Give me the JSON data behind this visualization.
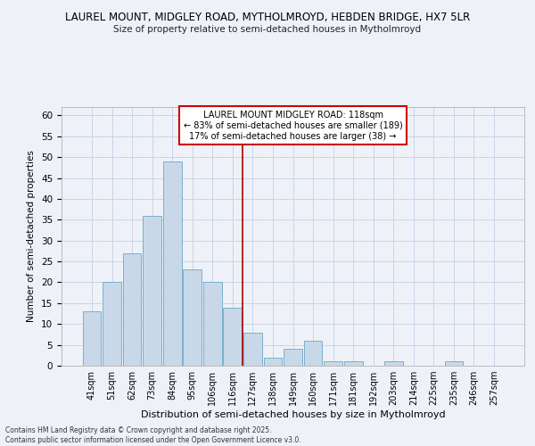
{
  "title_line1": "LAUREL MOUNT, MIDGLEY ROAD, MYTHOLMROYD, HEBDEN BRIDGE, HX7 5LR",
  "title_line2": "Size of property relative to semi-detached houses in Mytholmroyd",
  "xlabel": "Distribution of semi-detached houses by size in Mytholmroyd",
  "ylabel": "Number of semi-detached properties",
  "categories": [
    "41sqm",
    "51sqm",
    "62sqm",
    "73sqm",
    "84sqm",
    "95sqm",
    "106sqm",
    "116sqm",
    "127sqm",
    "138sqm",
    "149sqm",
    "160sqm",
    "171sqm",
    "181sqm",
    "192sqm",
    "203sqm",
    "214sqm",
    "225sqm",
    "235sqm",
    "246sqm",
    "257sqm"
  ],
  "values": [
    13,
    20,
    27,
    36,
    49,
    23,
    20,
    14,
    8,
    2,
    4,
    6,
    1,
    1,
    0,
    1,
    0,
    0,
    1,
    0,
    0
  ],
  "bar_color": "#c8d8e8",
  "bar_edge_color": "#7ab0cc",
  "vline_x": 7.5,
  "vline_color": "#aa0000",
  "annotation_title": "LAUREL MOUNT MIDGLEY ROAD: 118sqm",
  "annotation_line1": "← 83% of semi-detached houses are smaller (189)",
  "annotation_line2": "17% of semi-detached houses are larger (38) →",
  "annotation_box_color": "#cc0000",
  "ylim": [
    0,
    62
  ],
  "yticks": [
    0,
    5,
    10,
    15,
    20,
    25,
    30,
    35,
    40,
    45,
    50,
    55,
    60
  ],
  "grid_color": "#c8d4e8",
  "background_color": "#eef2f8",
  "footer_line1": "Contains HM Land Registry data © Crown copyright and database right 2025.",
  "footer_line2": "Contains public sector information licensed under the Open Government Licence v3.0."
}
